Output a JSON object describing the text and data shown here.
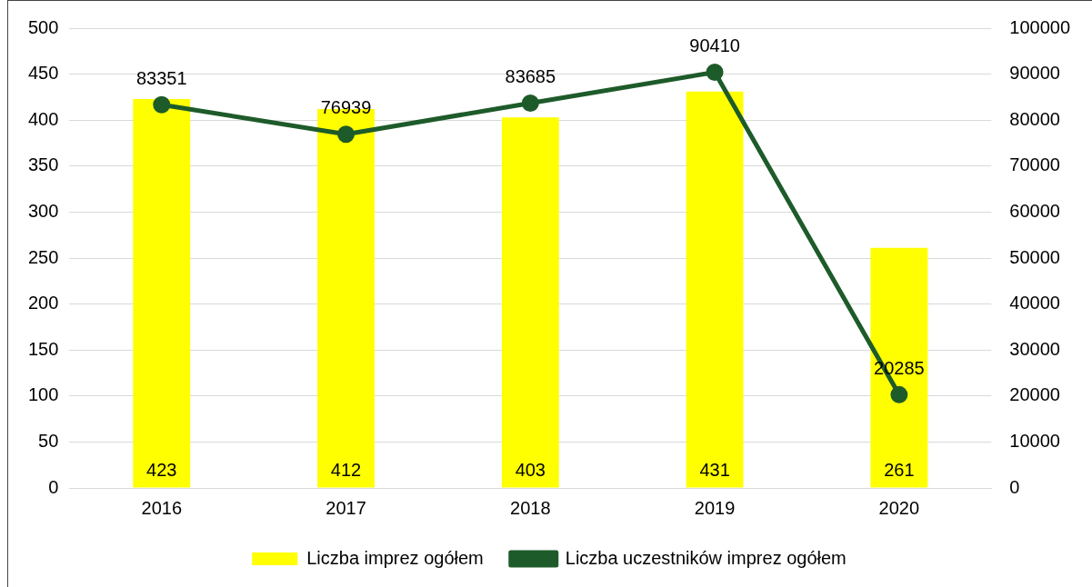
{
  "chart_data": {
    "type": "bar",
    "categories": [
      "2016",
      "2017",
      "2018",
      "2019",
      "2020"
    ],
    "series": [
      {
        "name": "Liczba imprez ogółem",
        "color": "#ffff00",
        "values": [
          423,
          412,
          403,
          431,
          261
        ]
      },
      {
        "name": "Liczba uczestników imprez ogółem",
        "type": "line",
        "axis": "y2",
        "color": "#1e5b2a",
        "values": [
          83351,
          76939,
          83685,
          90410,
          20285
        ]
      }
    ],
    "ylim": [
      0,
      500
    ],
    "yticks": [
      0,
      50,
      100,
      150,
      200,
      250,
      300,
      350,
      400,
      450,
      500
    ],
    "y2lim": [
      0,
      100000
    ],
    "y2ticks": [
      0,
      10000,
      20000,
      30000,
      40000,
      50000,
      60000,
      70000,
      80000,
      90000,
      100000
    ],
    "grid": "y",
    "legend": "bottom",
    "marker": "circle",
    "line_style": "solid",
    "data_labels": true
  }
}
